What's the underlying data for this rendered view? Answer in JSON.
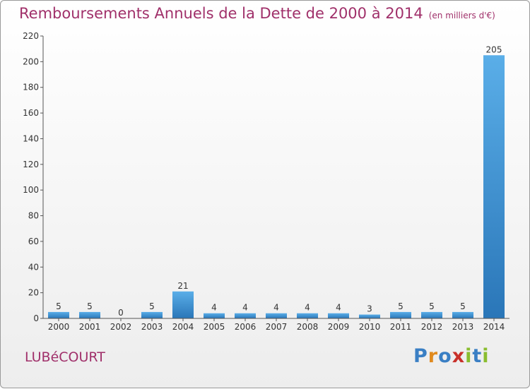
{
  "header": {
    "title": "Remboursements Annuels de la Dette de 2000 à 2014",
    "unit": "(en milliers d'€)"
  },
  "footer": {
    "town": "LUBéCOURT",
    "brand": {
      "letters": [
        "P",
        "r",
        "o",
        "x",
        "i",
        "t",
        "i"
      ],
      "colors": [
        "#3a7fc4",
        "#e08a1e",
        "#3a7fc4",
        "#c8302a",
        "#8abd2f",
        "#3a7fc4",
        "#8abd2f"
      ]
    }
  },
  "chart_data": {
    "type": "bar",
    "categories": [
      "2000",
      "2001",
      "2002",
      "2003",
      "2004",
      "2005",
      "2006",
      "2007",
      "2008",
      "2009",
      "2010",
      "2011",
      "2012",
      "2013",
      "2014"
    ],
    "values": [
      5,
      5,
      0,
      5,
      21,
      4,
      4,
      4,
      4,
      4,
      3,
      5,
      5,
      5,
      205
    ],
    "title": "Remboursements Annuels de la Dette de 2000 à 2014",
    "ylim": [
      0,
      220
    ],
    "yticks": [
      0,
      20,
      40,
      60,
      80,
      100,
      120,
      140,
      160,
      180,
      200,
      220
    ],
    "grid": false,
    "bar_color": "#3a8fd6"
  }
}
